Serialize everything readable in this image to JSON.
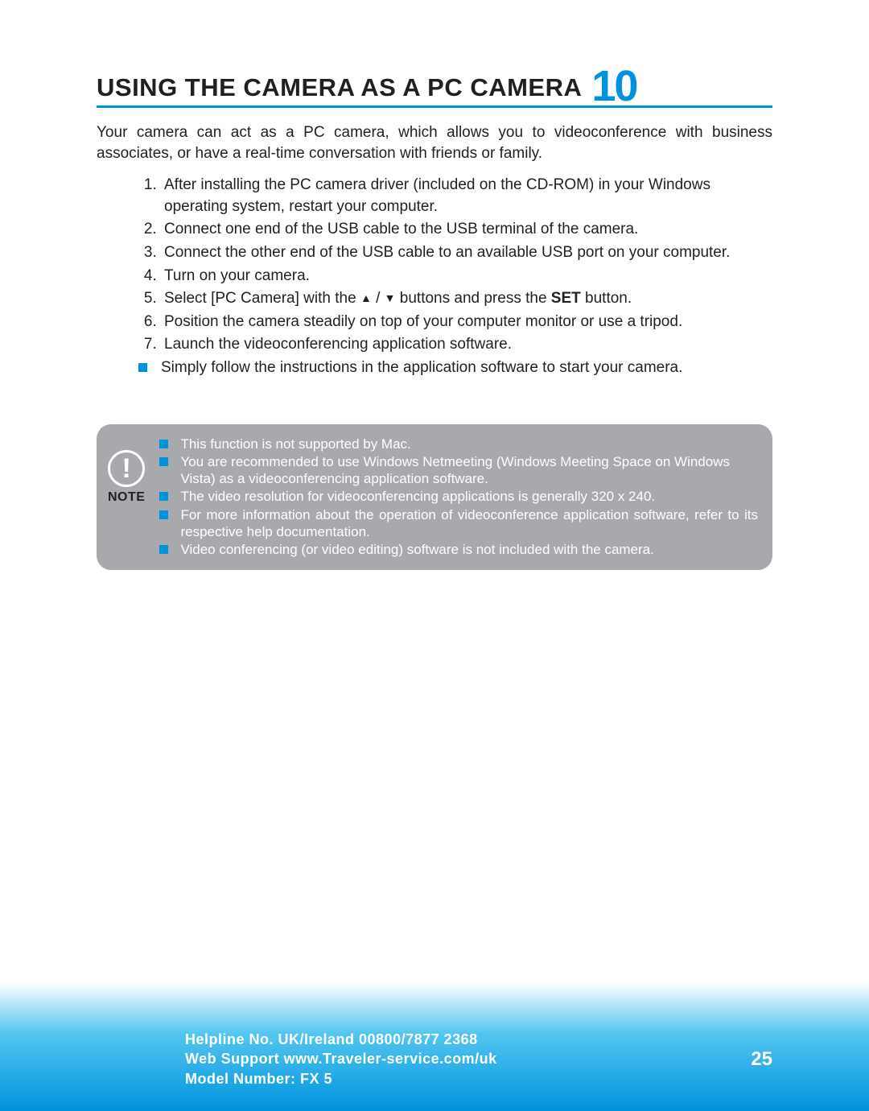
{
  "colors": {
    "accent": "#0093dd",
    "text": "#231f20",
    "note_bg": "#a7a9ac",
    "note_text": "#ffffff",
    "footer_grad_top": "#52c6f0",
    "footer_grad_bottom": "#0093dd"
  },
  "heading": {
    "title": "USING THE CAMERA AS A PC CAMERA",
    "chapter": "10"
  },
  "intro": "Your camera can act as a PC camera, which allows you to videoconference with business associates, or have a real-time conversation with friends or family.",
  "steps": [
    "After installing the PC camera driver (included on the CD-ROM) in your Windows operating system, restart your computer.",
    "Connect one end of the USB cable to the USB terminal of the camera.",
    "Connect the other end of the USB cable to an available USB port on your computer.",
    "Turn on your camera.",
    {
      "pre": "Select [PC Camera] with the ",
      "mid": " / ",
      "post": " buttons and press the ",
      "bold": "SET",
      "tail": " button."
    },
    "Position the camera steadily on top of your computer monitor or use a tripod.",
    "Launch the videoconferencing application software."
  ],
  "sub_bullet": "Simply follow the instructions in the application software to start your camera.",
  "note": {
    "label": "NOTE",
    "items": [
      "This function is not supported by Mac.",
      "You are recommended to use Windows Netmeeting (Windows Meeting Space on Windows Vista) as a videoconferencing application software.",
      "The video resolution for videoconferencing applications is generally 320 x 240.",
      "For more information about the operation of videoconference application software, refer to its respective help documentation.",
      "Video conferencing (or video editing) software is not included with the camera."
    ]
  },
  "footer": {
    "line1": "Helpline No. UK/Ireland 00800/7877 2368",
    "line2": "Web Support www.Traveler-service.com/uk",
    "line3": "Model Number: FX 5",
    "page": "25"
  }
}
